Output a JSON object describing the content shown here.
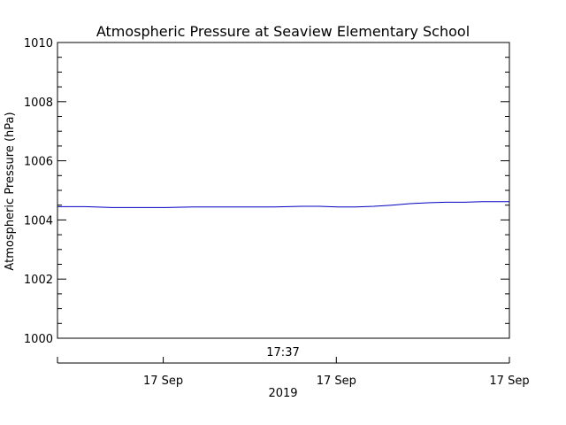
{
  "chart_data": {
    "type": "line",
    "title": "Atmospheric Pressure at Seaview Elementary School",
    "ylabel": "Atmospheric Pressure (hPa)",
    "ylim": [
      1000,
      1010
    ],
    "y_major_ticks": [
      1000,
      1002,
      1004,
      1006,
      1008,
      1010
    ],
    "y_tick_labels": [
      "1000",
      "1002",
      "1004",
      "1006",
      "1008",
      "1010"
    ],
    "y_minor_step": 0.5,
    "x_time_label": "17:37",
    "x_date_ticks": [
      {
        "label": "17 Sep",
        "frac": 0.234
      },
      {
        "label": "17 Sep",
        "frac": 0.617
      },
      {
        "label": "17 Sep",
        "frac": 1.0
      }
    ],
    "x_year_label": "2019",
    "grid": false,
    "legend": "none",
    "line_color": "#0000c0",
    "series": [
      {
        "x_frac": [
          0.0,
          0.06,
          0.12,
          0.18,
          0.24,
          0.3,
          0.36,
          0.42,
          0.48,
          0.54,
          0.58,
          0.62,
          0.66,
          0.7,
          0.74,
          0.78,
          0.82,
          0.86,
          0.9,
          0.94,
          1.0
        ],
        "values": [
          1004.45,
          1004.45,
          1004.42,
          1004.42,
          1004.42,
          1004.44,
          1004.44,
          1004.44,
          1004.44,
          1004.46,
          1004.46,
          1004.44,
          1004.44,
          1004.46,
          1004.5,
          1004.55,
          1004.58,
          1004.6,
          1004.6,
          1004.62,
          1004.62
        ]
      }
    ]
  }
}
